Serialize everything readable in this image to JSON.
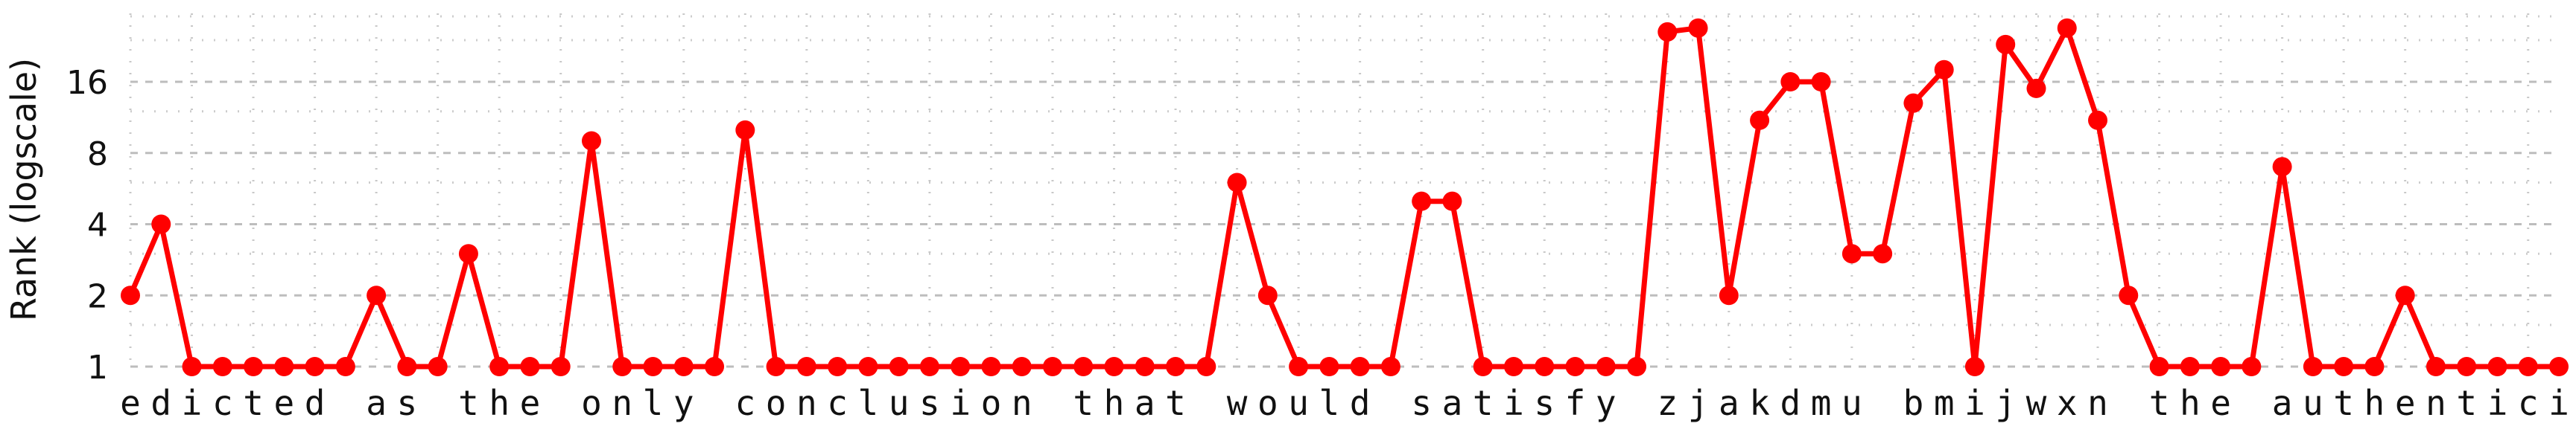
{
  "chart_data": {
    "type": "line",
    "ylabel": "Rank (logscale)",
    "yscale": "log2",
    "ylim": [
      1,
      28
    ],
    "y_ticks": [
      1,
      2,
      4,
      8,
      16
    ],
    "y_tick_labels": [
      "1",
      "2",
      "4",
      "8",
      "16"
    ],
    "grid": "dotted, both axes",
    "color": "#ff0000",
    "x": [
      "e",
      "d",
      "i",
      "c",
      "t",
      "e",
      "d",
      " ",
      "a",
      "s",
      " ",
      "t",
      "h",
      "e",
      " ",
      "o",
      "n",
      "l",
      "y",
      " ",
      "c",
      "o",
      "n",
      "c",
      "l",
      "u",
      "s",
      "i",
      "o",
      "n",
      " ",
      "t",
      "h",
      "a",
      "t",
      " ",
      "w",
      "o",
      "u",
      "l",
      "d",
      " ",
      "s",
      "a",
      "t",
      "i",
      "s",
      "f",
      "y",
      " ",
      "z",
      "j",
      "a",
      "k",
      "d",
      "m",
      "u",
      " ",
      "b",
      "m",
      "i",
      "j",
      "w",
      "x",
      "n",
      " ",
      "t",
      "h",
      "e",
      " ",
      "a",
      "u",
      "t",
      "h",
      "e",
      "n",
      "t",
      "i",
      "c",
      "i"
    ],
    "values": [
      2,
      4,
      1,
      1,
      1,
      1,
      1,
      1,
      2,
      1,
      1,
      3,
      1,
      1,
      1,
      9,
      1,
      1,
      1,
      1,
      10,
      1,
      1,
      1,
      1,
      1,
      1,
      1,
      1,
      1,
      1,
      1,
      1,
      1,
      1,
      1,
      6,
      2,
      1,
      1,
      1,
      1,
      5,
      5,
      1,
      1,
      1,
      1,
      1,
      1,
      26,
      27,
      2,
      11,
      16,
      16,
      3,
      3,
      13,
      18,
      1,
      23,
      15,
      27,
      11,
      2,
      1,
      1,
      1,
      1,
      7,
      1,
      1,
      1,
      2,
      1,
      1,
      1,
      1,
      1
    ]
  }
}
